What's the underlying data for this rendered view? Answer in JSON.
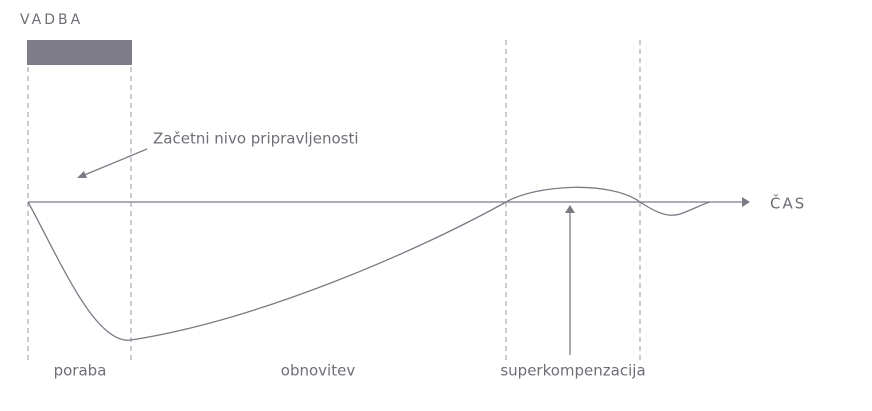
{
  "header": {
    "title": "VADBA"
  },
  "axis": {
    "label": "ČAS"
  },
  "annotations": {
    "baseline": "Začetni nivo pripravljenosti"
  },
  "phases": [
    {
      "label": "poraba"
    },
    {
      "label": "obnovitev"
    },
    {
      "label": "superkompenzacija"
    }
  ]
}
